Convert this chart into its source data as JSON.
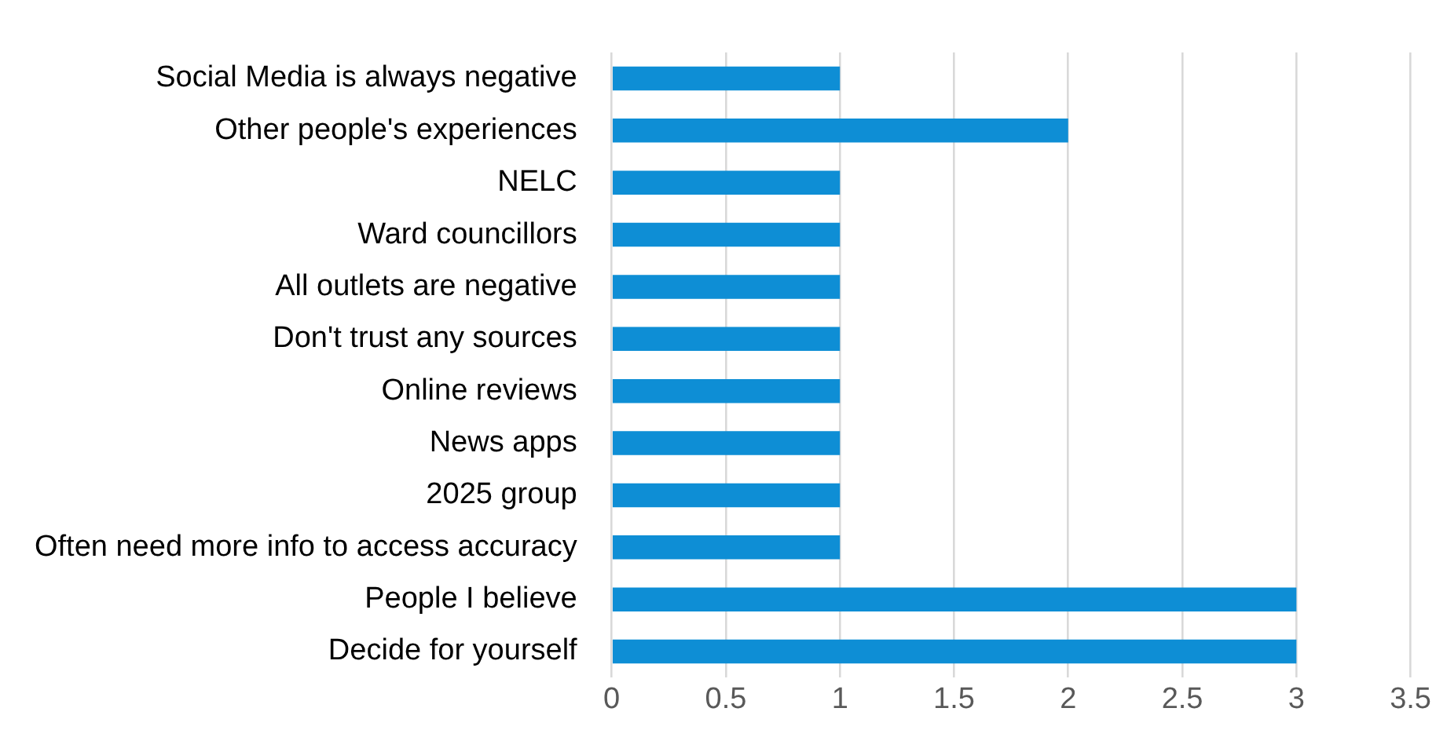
{
  "chart_data": {
    "type": "bar",
    "orientation": "horizontal",
    "categories": [
      "Social Media is always negative",
      "Other people's experiences",
      "NELC",
      "Ward councillors",
      "All outlets are negative",
      "Don't trust any sources",
      "Online reviews",
      "News apps",
      "2025 group",
      "Often need more info to access accuracy",
      "People I believe",
      "Decide for yourself"
    ],
    "values": [
      1,
      2,
      1,
      1,
      1,
      1,
      1,
      1,
      1,
      1,
      3,
      3
    ],
    "color": "#0e8ed5",
    "xlim": [
      0,
      3.5
    ],
    "xticks": [
      0,
      0.5,
      1,
      1.5,
      2,
      2.5,
      3,
      3.5
    ],
    "grid": "x",
    "legend": false
  }
}
